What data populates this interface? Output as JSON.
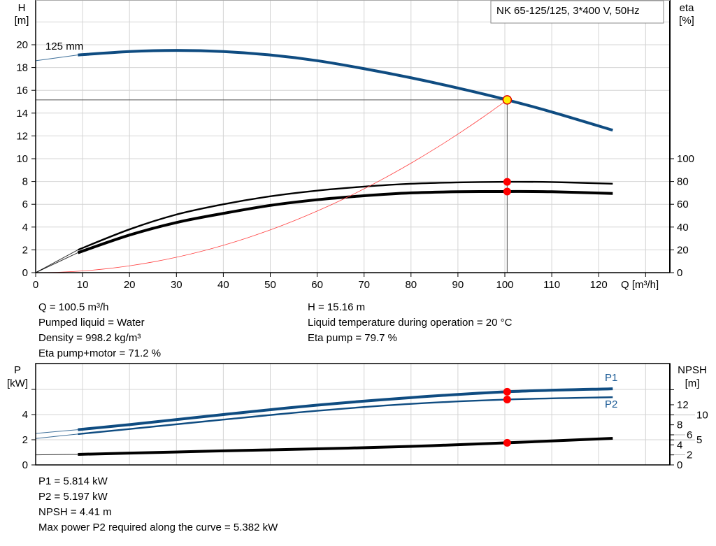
{
  "chart_data": [
    {
      "type": "line",
      "title_box": "NK 65-125/125, 3*400 V, 50Hz",
      "impeller_label": "125 mm",
      "xlabel": "Q [m³/h]",
      "xlim": [
        0,
        135
      ],
      "xticks": [
        0,
        10,
        20,
        30,
        40,
        50,
        60,
        70,
        80,
        90,
        100,
        110,
        120
      ],
      "y_left": {
        "label_line1": "H",
        "label_line2": "[m]",
        "ylim": [
          0,
          24
        ],
        "ticks": [
          0,
          2,
          4,
          6,
          8,
          10,
          12,
          14,
          16,
          18,
          20
        ]
      },
      "y_right": {
        "label_line1": "eta",
        "label_line2": "[%]",
        "ylim": [
          0,
          147
        ],
        "ticks": [
          0,
          20,
          40,
          60,
          80,
          100
        ]
      },
      "grid": true,
      "series": [
        {
          "key": "H",
          "axis": "left",
          "color": "#0f4c81",
          "thick_from": 9,
          "x": [
            0,
            9,
            20,
            30,
            40,
            50,
            60,
            70,
            80,
            90,
            100.5,
            110,
            123
          ],
          "y": [
            18.6,
            19.1,
            19.4,
            19.5,
            19.4,
            19.1,
            18.6,
            17.9,
            17.1,
            16.2,
            15.16,
            14.1,
            12.5
          ]
        },
        {
          "key": "eta_pump",
          "axis": "right",
          "color": "#000000",
          "thick_from": 9,
          "weight": "medium",
          "x": [
            0,
            9,
            20,
            30,
            40,
            50,
            60,
            70,
            80,
            90,
            100.5,
            110,
            123
          ],
          "y": [
            0,
            20,
            38,
            51,
            60,
            67,
            72,
            75.5,
            78,
            79.2,
            79.7,
            79.5,
            78
          ]
        },
        {
          "key": "eta_pump_motor",
          "axis": "right",
          "color": "#000000",
          "thick_from": 9,
          "weight": "heavy",
          "x": [
            0,
            9,
            20,
            30,
            40,
            50,
            60,
            70,
            80,
            90,
            100.5,
            110,
            123
          ],
          "y": [
            0,
            17.5,
            33,
            44,
            52,
            59,
            64,
            67.5,
            70,
            71,
            71.2,
            71,
            69.5
          ]
        },
        {
          "key": "system_curve",
          "axis": "left",
          "color": "#ff4040",
          "type": "parabola",
          "x_end": 100.5,
          "y_end": 15.16
        }
      ],
      "operating_point": {
        "q": 100.5,
        "h": 15.16,
        "eta_pump": 79.7,
        "eta_pump_motor": 71.2,
        "fill": "#ffee00",
        "stroke": "#e00000"
      }
    },
    {
      "type": "line",
      "xlim": [
        0,
        135
      ],
      "y_left": {
        "label_line1": "P",
        "label_line2": "[kW]",
        "ylim": [
          0,
          8
        ],
        "ticks": [
          0,
          2,
          4,
          6
        ],
        "tick_labels": [
          "0",
          "2",
          "4",
          ""
        ]
      },
      "y_right": {
        "label_line1": "NPSH",
        "label_line2": "[m]",
        "ylim": [
          0,
          20
        ],
        "ticks": [
          0,
          2,
          4,
          5,
          6,
          8,
          10,
          12,
          15
        ],
        "tick_labels": [
          "0",
          "2",
          "4",
          "5",
          "6",
          "8",
          "10",
          "12",
          ""
        ]
      },
      "grid": true,
      "series": [
        {
          "key": "P1",
          "name": "P1",
          "axis": "left",
          "color": "#0f4c81",
          "thick_from": 9,
          "weight": "heavy",
          "x": [
            0,
            9,
            20,
            40,
            60,
            80,
            100.5,
            123
          ],
          "y": [
            2.5,
            2.8,
            3.2,
            4.0,
            4.75,
            5.35,
            5.814,
            6.05
          ]
        },
        {
          "key": "P2",
          "name": "P2",
          "axis": "left",
          "color": "#0f4c81",
          "thick_from": 9,
          "weight": "medium",
          "x": [
            0,
            9,
            20,
            40,
            60,
            80,
            100.5,
            123
          ],
          "y": [
            2.1,
            2.45,
            2.85,
            3.6,
            4.3,
            4.85,
            5.197,
            5.382
          ]
        },
        {
          "key": "NPSH",
          "axis": "right",
          "color": "#000000",
          "thick_from": 9,
          "weight": "heavy",
          "x": [
            0,
            9,
            20,
            40,
            60,
            80,
            100.5,
            123
          ],
          "y": [
            2.0,
            2.1,
            2.35,
            2.8,
            3.2,
            3.7,
            4.41,
            5.3
          ]
        }
      ],
      "operating_point": {
        "q": 100.5,
        "p1": 5.814,
        "p2": 5.197,
        "npsh": 4.41,
        "fill": "#ff0000"
      }
    }
  ],
  "info_top": {
    "left": [
      "Q = 100.5 m³/h",
      "Pumped liquid = Water",
      "Density = 998.2 kg/m³",
      "Eta pump+motor = 71.2 %"
    ],
    "right": [
      "H = 15.16 m",
      "Liquid temperature during operation = 20 °C",
      "Eta pump = 79.7 %"
    ]
  },
  "info_bottom": [
    "P1 = 5.814 kW",
    "P2 = 5.197 kW",
    "NPSH = 4.41 m",
    "Max power P2 required along the curve = 5.382 kW"
  ]
}
